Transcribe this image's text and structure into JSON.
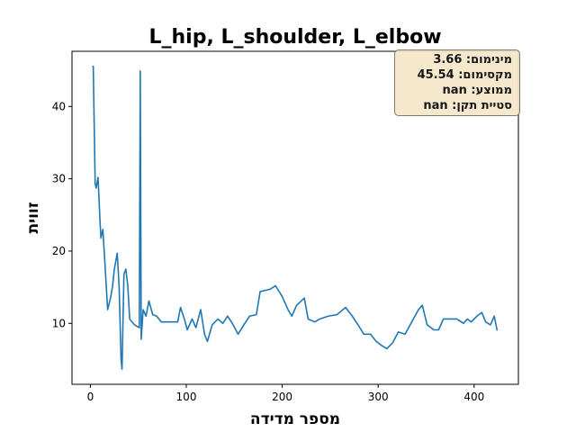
{
  "chart_data": {
    "type": "line",
    "title": "L_hip, L_shoulder, L_elbow",
    "xlabel": "מספר מדידה",
    "ylabel": "זווית",
    "annotations": [
      "מינימום: 3.66",
      "מקסימום: 45.54",
      "ממוצע: nan",
      "סטיית תקן: nan"
    ],
    "xlim": [
      -19.15,
      446.15
    ],
    "xticks": [
      0,
      100,
      200,
      300,
      400
    ],
    "ylim": [
      1.57,
      47.63
    ],
    "yticks": [
      10,
      20,
      30,
      40
    ],
    "series": [
      {
        "color": "#1f77b4",
        "x": [
          2,
          3,
          5,
          6,
          8,
          10,
          11,
          13,
          15,
          18,
          21,
          23,
          25,
          28,
          30,
          32,
          33,
          35,
          37,
          39,
          41,
          46,
          51,
          52,
          53,
          55,
          58,
          61,
          65,
          69,
          74,
          84,
          91,
          94,
          98,
          101,
          106,
          110,
          115,
          119,
          122,
          127,
          133,
          138,
          143,
          148,
          154,
          161,
          166,
          173,
          177,
          187,
          193,
          200,
          206,
          210,
          215,
          223,
          227,
          234,
          239,
          248,
          257,
          266,
          273,
          279,
          285,
          292,
          298,
          304,
          309,
          315,
          321,
          328,
          335,
          342,
          346,
          351,
          358,
          363,
          368,
          376,
          382,
          389,
          393,
          397,
          403,
          408,
          412,
          417,
          421,
          424
        ],
        "values": [
          45.5,
          45.54,
          29.3,
          28.7,
          30.2,
          24.3,
          21.8,
          23,
          18.7,
          11.9,
          13.5,
          15,
          17.5,
          19.7,
          15,
          5,
          3.66,
          16.8,
          17.5,
          15.2,
          10.6,
          9.8,
          9.4,
          44.9,
          7.8,
          11.9,
          11,
          13.1,
          11.2,
          11,
          10.2,
          10.2,
          10.2,
          12.2,
          10.6,
          9.1,
          10.6,
          9.4,
          11.9,
          8.5,
          7.5,
          9.8,
          10.6,
          10,
          11,
          10,
          8.5,
          10,
          11,
          11.2,
          14.4,
          14.7,
          15.2,
          13.7,
          11.9,
          11,
          12.5,
          13.5,
          10.6,
          10.2,
          10.6,
          11,
          11.2,
          12.2,
          11,
          9.8,
          8.5,
          8.5,
          7.5,
          6.9,
          6.5,
          7.3,
          8.8,
          8.5,
          10.2,
          11.9,
          12.5,
          9.8,
          9.1,
          9.1,
          10.6,
          10.6,
          10.6,
          10,
          10.6,
          10.2,
          11,
          11.5,
          10.2,
          9.8,
          11,
          9
        ]
      }
    ]
  }
}
